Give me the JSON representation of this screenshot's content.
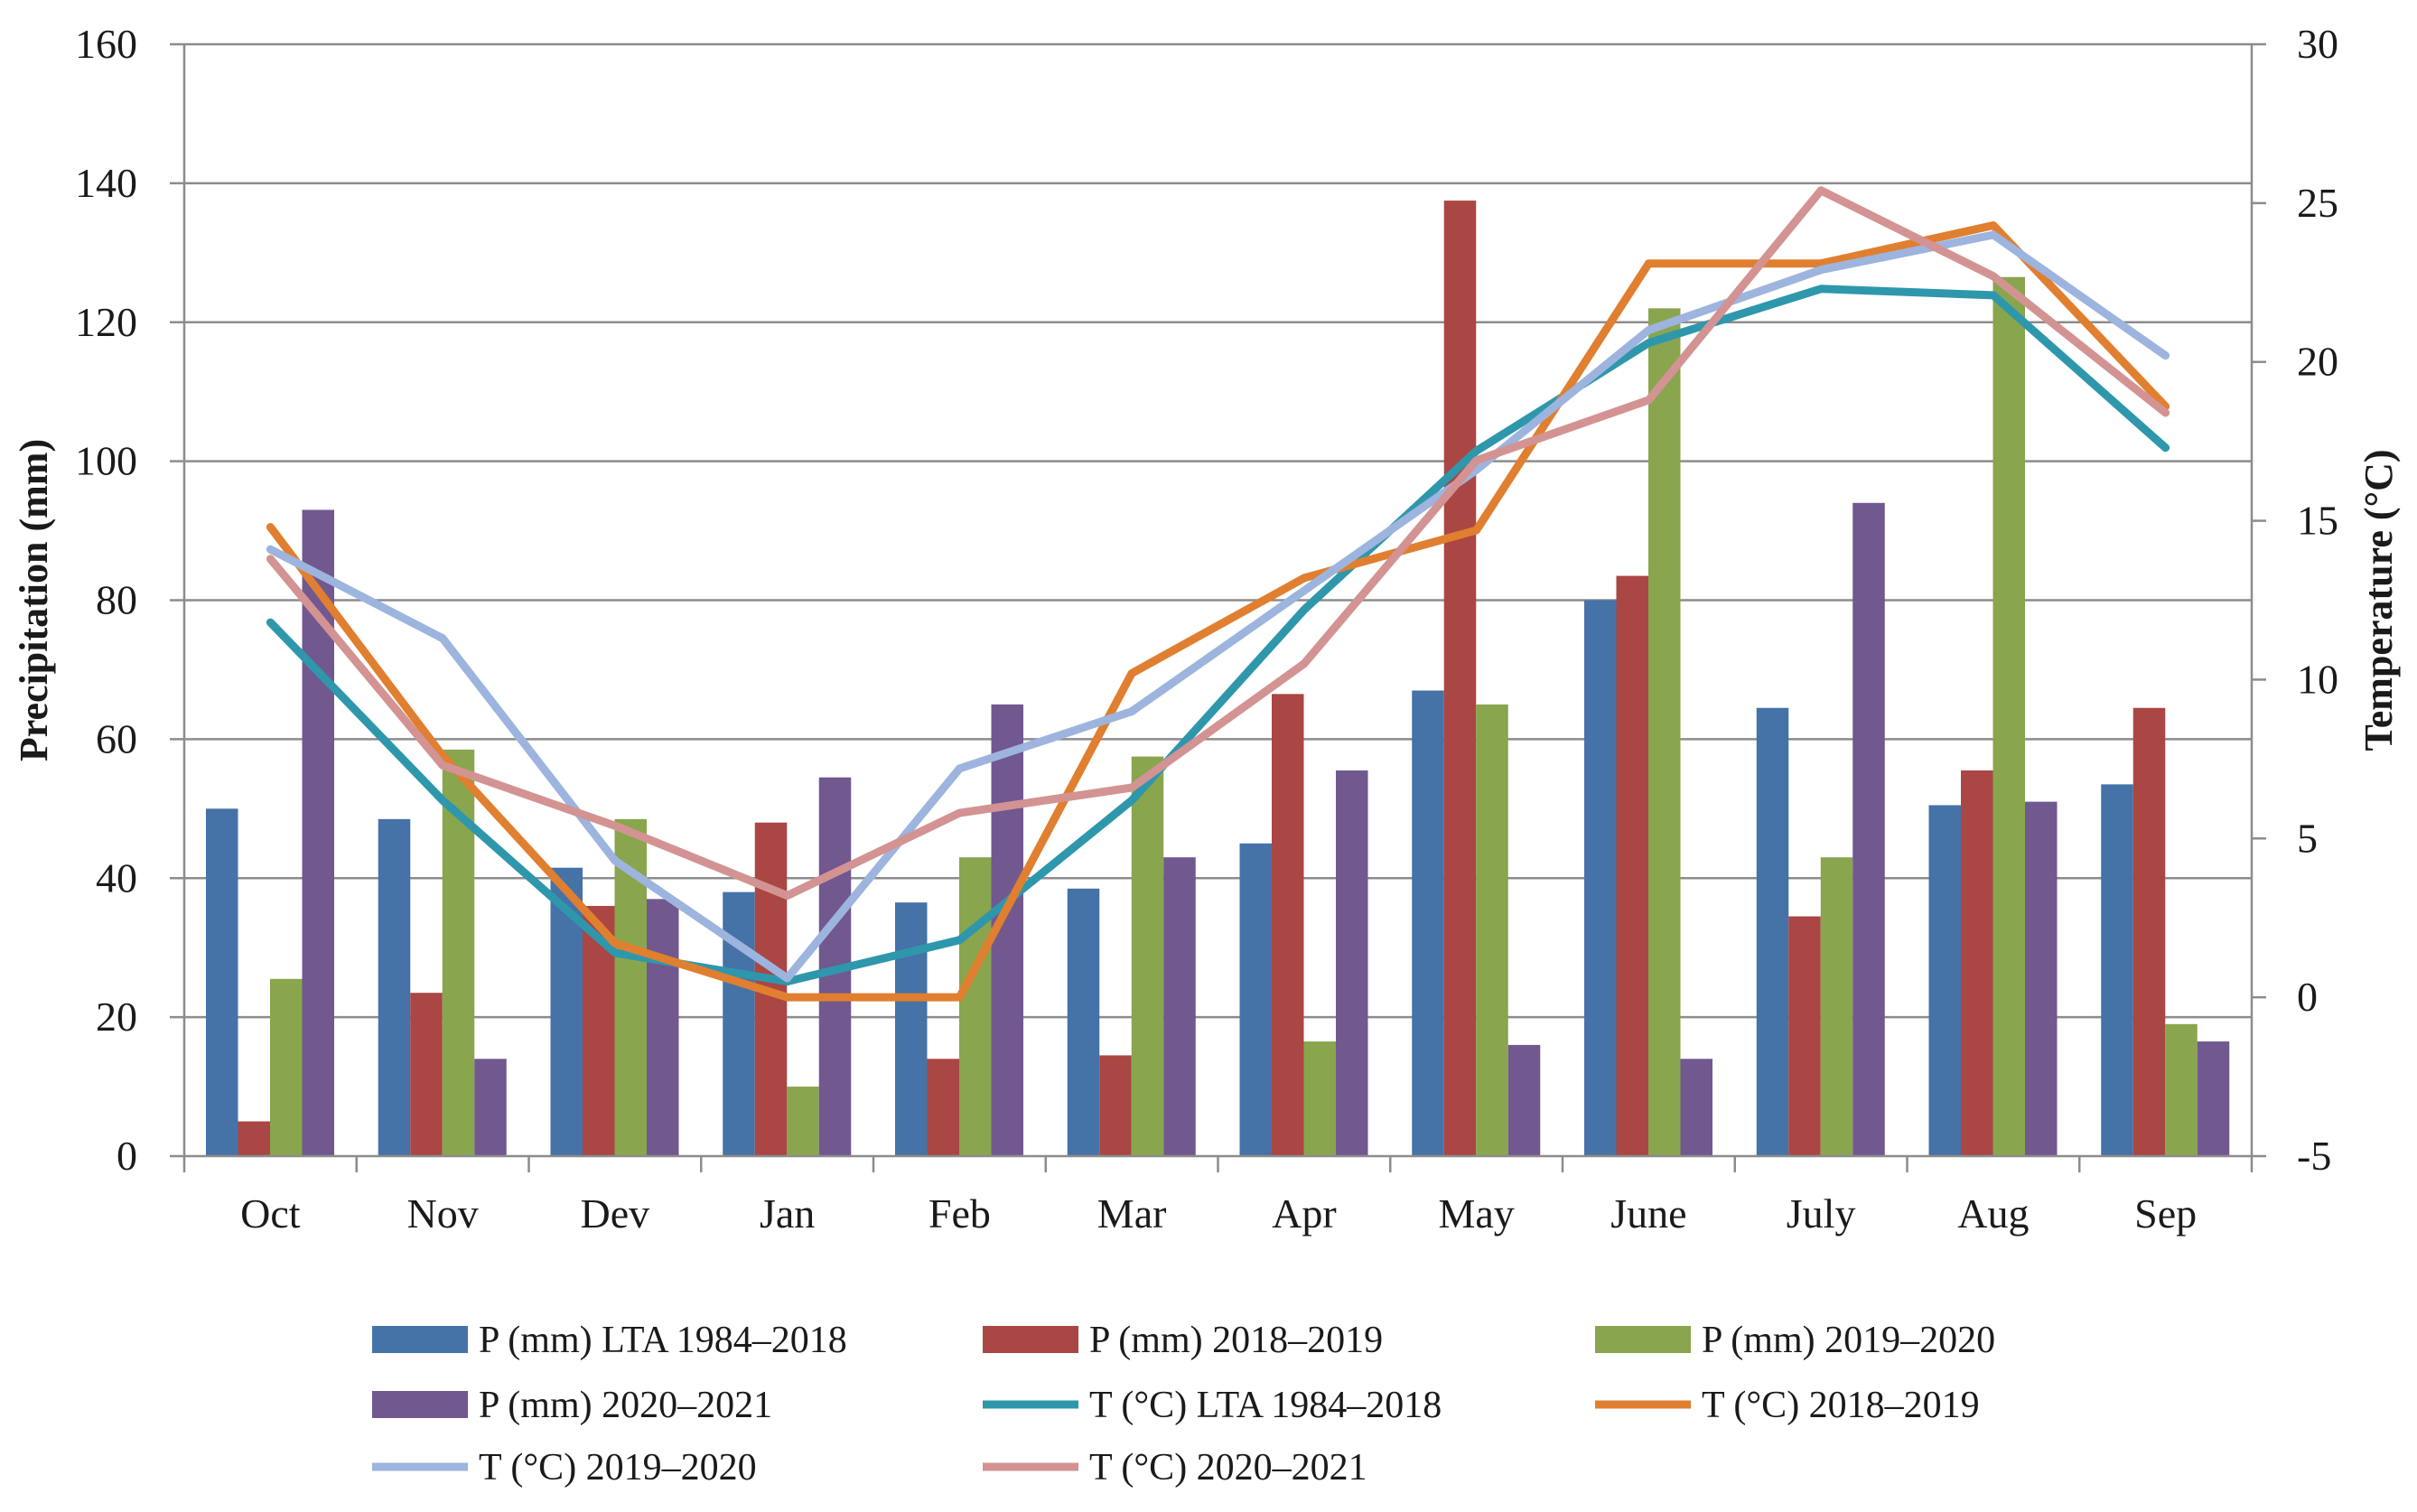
{
  "chart_data": {
    "type": "bar+line",
    "categories": [
      "Oct",
      "Nov",
      "Dev",
      "Jan",
      "Feb",
      "Mar",
      "Apr",
      "May",
      "June",
      "July",
      "Aug",
      "Sep"
    ],
    "ylabel": "Precipitation  (mm)",
    "y2label": "Temperature (°C)",
    "ylim": [
      0,
      160
    ],
    "y2lim": [
      -5,
      30
    ],
    "yticks": [
      "0",
      "20",
      "40",
      "60",
      "80",
      "100",
      "120",
      "140",
      "160"
    ],
    "y2ticks": [
      "-5",
      "0",
      "5",
      "10",
      "15",
      "20",
      "25",
      "30"
    ],
    "grid": true,
    "legend_position": "bottom",
    "bar_series": [
      {
        "name": "P (mm) LTA 1984–2018",
        "color": "#4572A7",
        "values": [
          50,
          48.5,
          41.5,
          38,
          36.5,
          38.5,
          45,
          67,
          80,
          64.5,
          50.5,
          53.5
        ]
      },
      {
        "name": "P (mm) 2018–2019",
        "color": "#AA4643",
        "values": [
          5,
          23.5,
          36,
          48,
          14,
          14.5,
          66.5,
          137.5,
          83.5,
          34.5,
          55.5,
          64.5
        ]
      },
      {
        "name": "P (mm) 2019–2020",
        "color": "#89A54E",
        "values": [
          25.5,
          58.5,
          48.5,
          10,
          43,
          57.5,
          16.5,
          65,
          122,
          43,
          126.5,
          19
        ]
      },
      {
        "name": "P (mm) 2020–2021",
        "color": "#71588F",
        "values": [
          93,
          14,
          37,
          54.5,
          65,
          43,
          55.5,
          16,
          14,
          94,
          51,
          16.5
        ]
      }
    ],
    "line_series": [
      {
        "name": "T (°C) LTA 1984–2018",
        "color": "#2E97AC",
        "values": [
          11.8,
          6.2,
          1.4,
          0.5,
          1.8,
          6.2,
          12.2,
          17.2,
          20.6,
          22.3,
          22.1,
          17.3
        ]
      },
      {
        "name": "T (°C) 2018–2019",
        "color": "#E07F30",
        "values": [
          14.8,
          7.6,
          1.7,
          0,
          0,
          10.2,
          13.2,
          14.7,
          23.1,
          23.1,
          24.3,
          18.6
        ]
      },
      {
        "name": "T (°C) 2019–2020",
        "color": "#9DB4DE",
        "values": [
          14.1,
          11.3,
          4.3,
          0.6,
          7.2,
          9,
          12.8,
          16.6,
          21,
          22.9,
          24,
          20.2
        ]
      },
      {
        "name": "T (°C) 2020–2021",
        "color": "#D39393",
        "values": [
          13.8,
          7.3,
          5.4,
          3.2,
          5.8,
          6.6,
          10.5,
          16.9,
          18.8,
          25.4,
          22.7,
          18.4
        ]
      }
    ]
  }
}
